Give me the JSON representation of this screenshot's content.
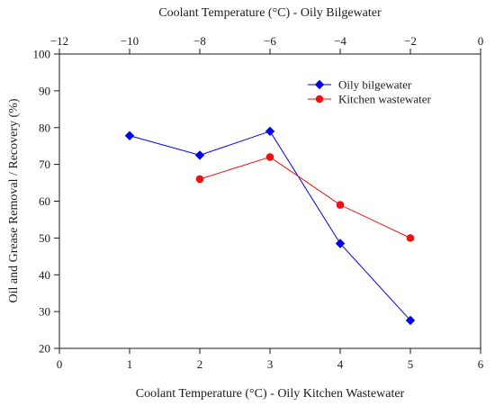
{
  "chart_data": {
    "type": "line",
    "xlabel_bottom": "Coolant Temperature (°C) - Oily Kitchen Wastewater",
    "xlabel_top": "Coolant Temperature (°C) - Oily Bilgewater",
    "ylabel": "Oil and Grease Removal / Recovery (%)",
    "x_bottom_range": [
      0,
      6
    ],
    "x_bottom_ticks": [
      0,
      1,
      2,
      3,
      4,
      5,
      6
    ],
    "x_top_range": [
      -12,
      0
    ],
    "x_top_ticks": [
      -12,
      -10,
      -8,
      -6,
      -4,
      -2,
      0
    ],
    "ylim": [
      20,
      100
    ],
    "y_ticks": [
      20,
      30,
      40,
      50,
      60,
      70,
      80,
      90,
      100
    ],
    "grid": false,
    "legend_position": "top-right",
    "series": [
      {
        "name": "Oily bilgewater",
        "axis": "top",
        "color": "#0000ee",
        "marker": "diamond",
        "x": [
          -10,
          -8,
          -6,
          -4,
          -2
        ],
        "y": [
          77.8,
          72.5,
          79,
          48.5,
          27.6
        ]
      },
      {
        "name": "Kitchen wastewater",
        "axis": "bottom",
        "color": "#ee1111",
        "marker": "circle",
        "x": [
          2,
          3,
          4,
          5
        ],
        "y": [
          66,
          72,
          59,
          50
        ]
      }
    ]
  }
}
